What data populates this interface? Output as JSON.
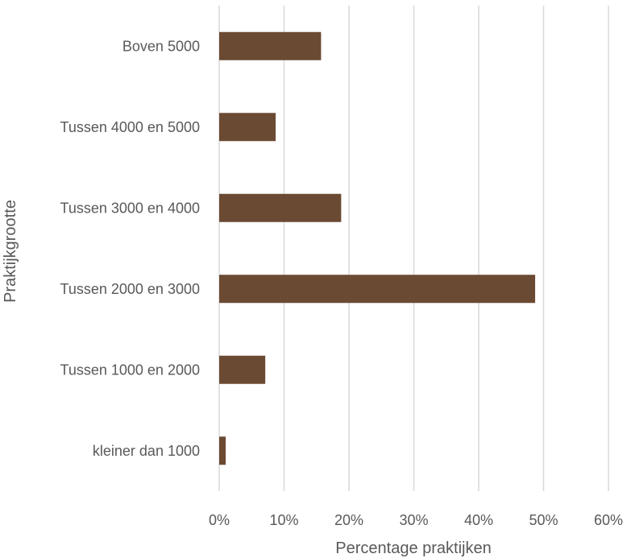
{
  "chart_data": {
    "type": "bar",
    "orientation": "horizontal",
    "categories": [
      "kleiner dan 1000",
      "Tussen 1000 en 2000",
      "Tussen 2000 en 3000",
      "Tussen 3000 en 4000",
      "Tussen 4000 en 5000",
      "Boven 5000"
    ],
    "values": [
      1.0,
      7.1,
      48.7,
      18.8,
      8.7,
      15.7
    ],
    "xlabel": "Percentage praktijken",
    "ylabel": "Praktijkgrootte",
    "xlim": [
      0,
      60
    ],
    "ticks": [
      "0%",
      "10%",
      "20%",
      "30%",
      "40%",
      "50%",
      "60%"
    ],
    "grid": "vertical",
    "legend": "none",
    "colors": {
      "bar": "#6b4a33",
      "grid": "#d9d9d9",
      "text": "#595959"
    }
  }
}
